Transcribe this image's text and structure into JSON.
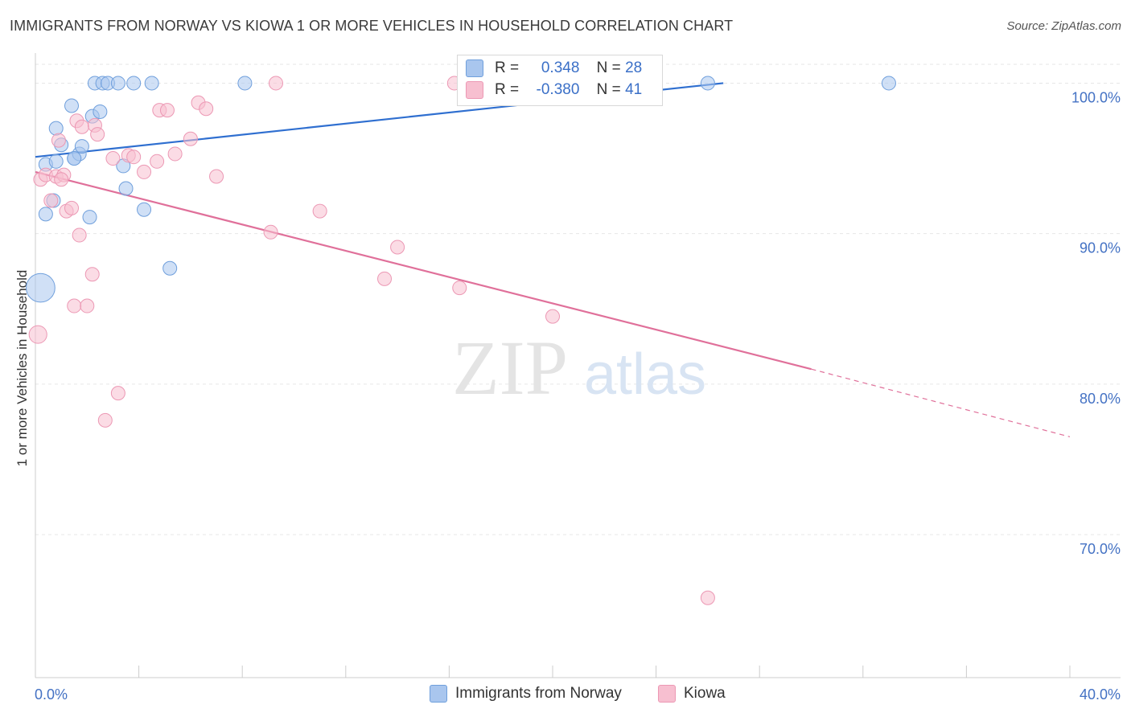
{
  "chart_data": {
    "type": "scatter",
    "title": "IMMIGRANTS FROM NORWAY VS KIOWA 1 OR MORE VEHICLES IN HOUSEHOLD CORRELATION CHART",
    "source": "Source: ZipAtlas.com",
    "xlabel": "",
    "ylabel": "1 or more Vehicles in Household",
    "xlim": [
      0,
      40
    ],
    "ylim": [
      60.5,
      102
    ],
    "x_tick_labels": {
      "min": "0.0%",
      "max": "40.0%"
    },
    "y_ticks": [
      100,
      90,
      80,
      70
    ],
    "y_tick_labels": [
      "100.0%",
      "90.0%",
      "80.0%",
      "70.0%"
    ],
    "watermark": {
      "zip": "ZIP",
      "atlas": "atlas"
    },
    "series": [
      {
        "name": "Immigrants from Norway",
        "color": "#a9c6ee",
        "stroke": "#6f9fdc",
        "line_color": "#2f6fd0",
        "R_label": "R =",
        "R": "0.348",
        "N_label": "N =",
        "N": "28",
        "trend": {
          "x0": 0,
          "y0": 95.1,
          "x1": 26.6,
          "y1": 100.0
        },
        "points": [
          {
            "x": 0.7,
            "y": 92.2,
            "s": 1
          },
          {
            "x": 0.4,
            "y": 91.3,
            "s": 1
          },
          {
            "x": 0.4,
            "y": 94.6,
            "s": 1
          },
          {
            "x": 0.8,
            "y": 94.8,
            "s": 1
          },
          {
            "x": 0.8,
            "y": 97.0,
            "s": 1
          },
          {
            "x": 1.4,
            "y": 98.5,
            "s": 1
          },
          {
            "x": 1.0,
            "y": 95.9,
            "s": 1
          },
          {
            "x": 1.5,
            "y": 95.0,
            "s": 1
          },
          {
            "x": 1.7,
            "y": 95.3,
            "s": 1
          },
          {
            "x": 1.8,
            "y": 95.8,
            "s": 1
          },
          {
            "x": 2.1,
            "y": 91.1,
            "s": 1
          },
          {
            "x": 2.2,
            "y": 97.8,
            "s": 1
          },
          {
            "x": 2.5,
            "y": 98.1,
            "s": 1
          },
          {
            "x": 2.3,
            "y": 100.0,
            "s": 1
          },
          {
            "x": 2.6,
            "y": 100.0,
            "s": 1
          },
          {
            "x": 2.8,
            "y": 100.0,
            "s": 1
          },
          {
            "x": 3.2,
            "y": 100.0,
            "s": 1
          },
          {
            "x": 3.8,
            "y": 100.0,
            "s": 1
          },
          {
            "x": 4.5,
            "y": 100.0,
            "s": 1
          },
          {
            "x": 8.1,
            "y": 100.0,
            "s": 1
          },
          {
            "x": 3.4,
            "y": 94.5,
            "s": 1
          },
          {
            "x": 3.5,
            "y": 93.0,
            "s": 1
          },
          {
            "x": 4.2,
            "y": 91.6,
            "s": 1
          },
          {
            "x": 5.2,
            "y": 87.7,
            "s": 1
          },
          {
            "x": 0.2,
            "y": 86.4,
            "s": 2.1
          },
          {
            "x": 26.0,
            "y": 100.0,
            "s": 1
          },
          {
            "x": 33.0,
            "y": 100.0,
            "s": 1
          },
          {
            "x": 1.5,
            "y": 95.0,
            "s": 1
          }
        ]
      },
      {
        "name": "Kiowa",
        "color": "#f7bfd0",
        "stroke": "#ec98b4",
        "line_color": "#e0709a",
        "R_label": "R =",
        "R": "-0.380",
        "N_label": "N =",
        "N": "41",
        "trend": {
          "x0": 0,
          "y0": 94.1,
          "x1": 30.0,
          "y1": 81.0
        },
        "trend_dashed": {
          "x0": 30.0,
          "y0": 81.0,
          "x1": 40.0,
          "y1": 76.5
        },
        "points": [
          {
            "x": 0.2,
            "y": 93.6,
            "s": 1
          },
          {
            "x": 0.4,
            "y": 93.9,
            "s": 1
          },
          {
            "x": 0.6,
            "y": 92.2,
            "s": 1
          },
          {
            "x": 0.8,
            "y": 93.8,
            "s": 1
          },
          {
            "x": 0.9,
            "y": 96.2,
            "s": 1
          },
          {
            "x": 1.1,
            "y": 93.9,
            "s": 1
          },
          {
            "x": 1.0,
            "y": 93.6,
            "s": 1
          },
          {
            "x": 1.2,
            "y": 91.5,
            "s": 1
          },
          {
            "x": 1.4,
            "y": 91.7,
            "s": 1
          },
          {
            "x": 1.6,
            "y": 97.5,
            "s": 1
          },
          {
            "x": 1.7,
            "y": 89.9,
            "s": 1
          },
          {
            "x": 1.8,
            "y": 97.1,
            "s": 1
          },
          {
            "x": 2.2,
            "y": 87.3,
            "s": 1
          },
          {
            "x": 2.3,
            "y": 97.2,
            "s": 1
          },
          {
            "x": 2.4,
            "y": 96.6,
            "s": 1
          },
          {
            "x": 1.5,
            "y": 85.2,
            "s": 1
          },
          {
            "x": 2.0,
            "y": 85.2,
            "s": 1
          },
          {
            "x": 3.0,
            "y": 95.0,
            "s": 1
          },
          {
            "x": 3.6,
            "y": 95.2,
            "s": 1
          },
          {
            "x": 3.8,
            "y": 95.1,
            "s": 1
          },
          {
            "x": 4.2,
            "y": 94.1,
            "s": 1
          },
          {
            "x": 4.7,
            "y": 94.8,
            "s": 1
          },
          {
            "x": 4.8,
            "y": 98.2,
            "s": 1
          },
          {
            "x": 5.1,
            "y": 98.2,
            "s": 1
          },
          {
            "x": 5.4,
            "y": 95.3,
            "s": 1
          },
          {
            "x": 6.0,
            "y": 96.3,
            "s": 1
          },
          {
            "x": 6.3,
            "y": 98.7,
            "s": 1
          },
          {
            "x": 6.6,
            "y": 98.3,
            "s": 1
          },
          {
            "x": 7.0,
            "y": 93.8,
            "s": 1
          },
          {
            "x": 9.1,
            "y": 90.1,
            "s": 1
          },
          {
            "x": 9.3,
            "y": 100.0,
            "s": 1
          },
          {
            "x": 11.0,
            "y": 91.5,
            "s": 1
          },
          {
            "x": 13.5,
            "y": 87.0,
            "s": 1
          },
          {
            "x": 14.0,
            "y": 89.1,
            "s": 1
          },
          {
            "x": 16.2,
            "y": 100.0,
            "s": 1
          },
          {
            "x": 16.4,
            "y": 86.4,
            "s": 1
          },
          {
            "x": 20.0,
            "y": 84.5,
            "s": 1
          },
          {
            "x": 3.2,
            "y": 79.4,
            "s": 1
          },
          {
            "x": 2.7,
            "y": 77.6,
            "s": 1
          },
          {
            "x": 0.1,
            "y": 83.3,
            "s": 1.3
          },
          {
            "x": 26.0,
            "y": 65.8,
            "s": 1
          }
        ]
      }
    ]
  }
}
